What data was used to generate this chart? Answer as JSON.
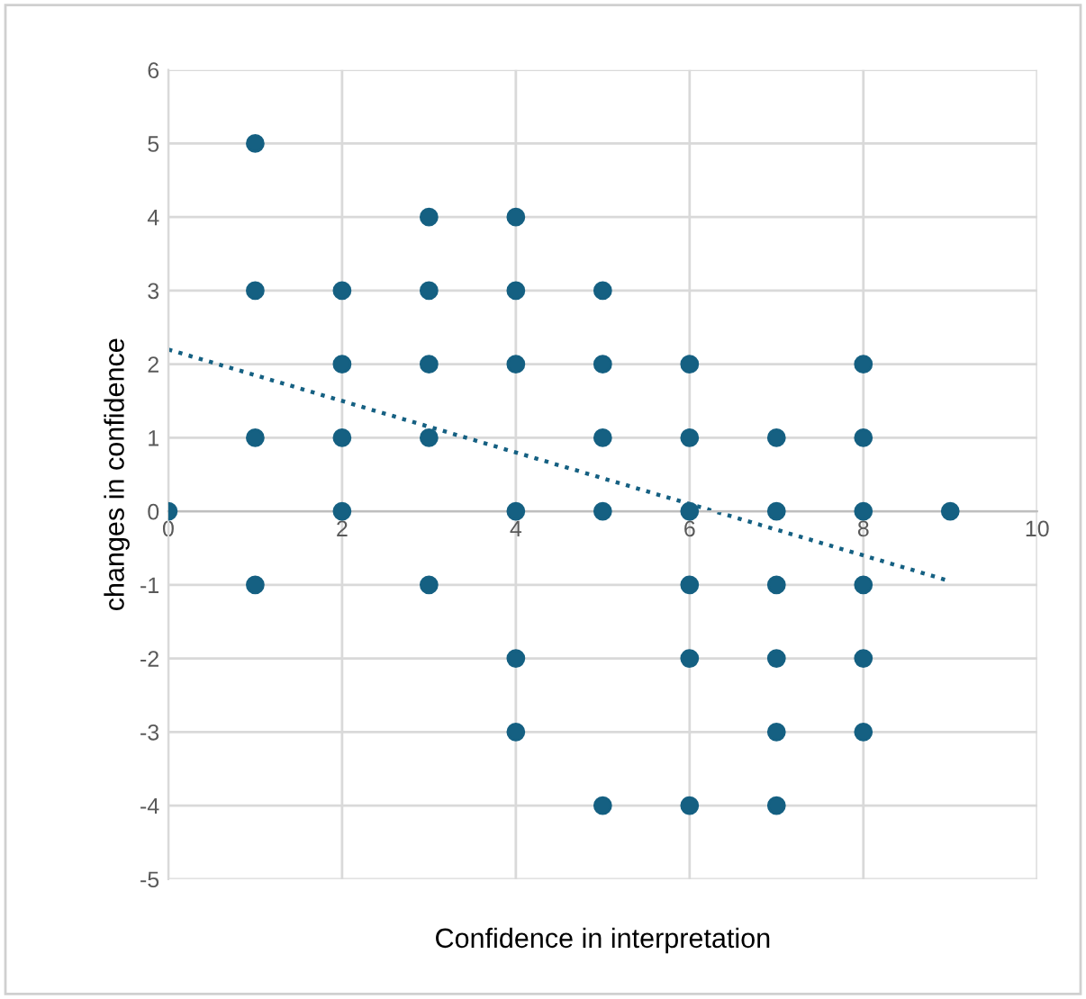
{
  "chart_data": {
    "type": "scatter",
    "xlabel": "Confidence in interpretation",
    "ylabel": "changes in confidence",
    "x": [
      0,
      1,
      1,
      1,
      1,
      2,
      2,
      2,
      2,
      3,
      3,
      3,
      3,
      3,
      4,
      4,
      4,
      4,
      4,
      4,
      5,
      5,
      5,
      5,
      5,
      6,
      6,
      6,
      6,
      6,
      6,
      7,
      7,
      7,
      7,
      7,
      7,
      8,
      8,
      8,
      8,
      8,
      8,
      9
    ],
    "series": [
      {
        "color": "#156082",
        "marker": "circle",
        "values": [
          0,
          5,
          3,
          1,
          -1,
          3,
          2,
          1,
          0,
          4,
          3,
          2,
          1,
          -1,
          4,
          3,
          2,
          0,
          -2,
          -3,
          3,
          2,
          1,
          0,
          -4,
          2,
          1,
          0,
          -1,
          -2,
          -4,
          1,
          0,
          -1,
          -2,
          -3,
          -4,
          2,
          1,
          0,
          -1,
          -2,
          -3,
          0
        ]
      },
      {
        "type": "line",
        "color": "#156082",
        "line_style": "dotted",
        "marker": "none",
        "x": [
          0,
          9
        ],
        "values": [
          2.2,
          -0.95
        ]
      }
    ],
    "xlim": [
      0,
      10
    ],
    "xticks": [
      0,
      2,
      4,
      6,
      8,
      10
    ],
    "ylim": [
      -5,
      6
    ],
    "yticks": [
      -5,
      -4,
      -3,
      -2,
      -1,
      0,
      1,
      2,
      3,
      4,
      5,
      6
    ],
    "grid": true,
    "legend": false
  }
}
